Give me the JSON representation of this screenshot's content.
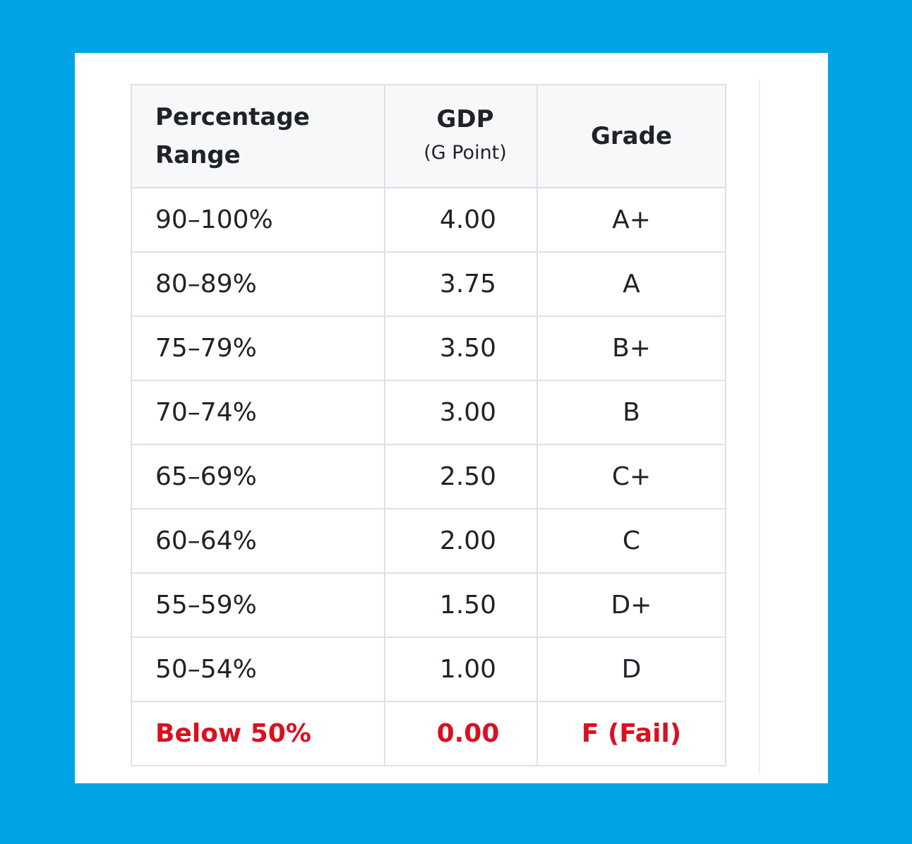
{
  "table": {
    "headers": {
      "range": "Percentage Range",
      "gdp": "GDP",
      "gdp_sub": "(G Point)",
      "grade": "Grade"
    },
    "rows": [
      {
        "range": "90–100%",
        "gdp": "4.00",
        "grade": "A+"
      },
      {
        "range": "80–89%",
        "gdp": "3.75",
        "grade": "A"
      },
      {
        "range": "75–79%",
        "gdp": "3.50",
        "grade": "B+"
      },
      {
        "range": "70–74%",
        "gdp": "3.00",
        "grade": "B"
      },
      {
        "range": "65–69%",
        "gdp": "2.50",
        "grade": "C+"
      },
      {
        "range": "60–64%",
        "gdp": "2.00",
        "grade": "C"
      },
      {
        "range": "55–59%",
        "gdp": "1.50",
        "grade": "D+"
      },
      {
        "range": "50–54%",
        "gdp": "1.00",
        "grade": "D"
      },
      {
        "range": "Below 50%",
        "gdp": "0.00",
        "grade": "F (Fail)",
        "status": "fail"
      }
    ]
  },
  "colors": {
    "background": "#00a3e4",
    "fail_text": "#d9111f",
    "header_bg": "#f6f8fa"
  }
}
